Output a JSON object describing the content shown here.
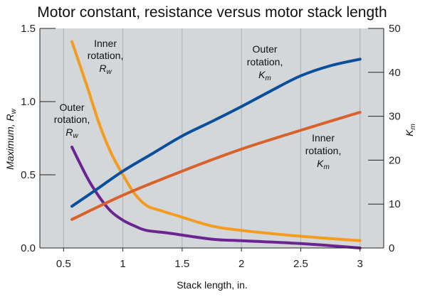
{
  "chart_data": {
    "type": "line",
    "title": "Motor constant, resistance versus motor stack length",
    "xlabel": "Stack length, in.",
    "ylabel": "Maximum, R",
    "ylabel_sub": "w",
    "y2label": "K",
    "y2label_sub": "m",
    "xlim": [
      0.3,
      3.2
    ],
    "ylim": [
      0,
      1.5
    ],
    "y2lim": [
      0,
      50
    ],
    "x_ticks": [
      "0.5",
      "1",
      "1.5",
      "2",
      "2.5",
      "3"
    ],
    "x_tick_values": [
      0.5,
      1,
      1.5,
      2,
      2.5,
      3
    ],
    "y_ticks": [
      "0.0",
      "0.5",
      "1.0",
      "1.5"
    ],
    "y_tick_values": [
      0,
      0.5,
      1.0,
      1.5
    ],
    "y2_ticks": [
      "0",
      "10",
      "20",
      "30",
      "40",
      "50"
    ],
    "y2_tick_values": [
      0,
      10,
      20,
      30,
      40,
      50
    ],
    "grid": "vertical",
    "series": [
      {
        "axis": "left",
        "color": "#f39c1f",
        "x": [
          0.57,
          0.7,
          0.8,
          0.9,
          1.0,
          1.1,
          1.2,
          1.3,
          1.5,
          1.75,
          2.0,
          2.5,
          3.0
        ],
        "values": [
          1.41,
          1.1,
          0.85,
          0.65,
          0.5,
          0.37,
          0.29,
          0.26,
          0.21,
          0.15,
          0.12,
          0.08,
          0.05
        ]
      },
      {
        "axis": "left",
        "color": "#6a2591",
        "x": [
          0.57,
          0.7,
          0.8,
          0.9,
          1.0,
          1.1,
          1.2,
          1.4,
          1.75,
          2.0,
          2.5,
          3.0
        ],
        "values": [
          0.69,
          0.48,
          0.35,
          0.25,
          0.19,
          0.15,
          0.12,
          0.1,
          0.06,
          0.05,
          0.03,
          0.0
        ]
      },
      {
        "axis": "right",
        "color": "#0b4f9c",
        "x": [
          0.57,
          0.75,
          1.0,
          1.25,
          1.5,
          1.75,
          2.0,
          2.25,
          2.5,
          2.75,
          3.0
        ],
        "values": [
          9.5,
          12.8,
          17.5,
          21.5,
          25.5,
          28.8,
          32.2,
          35.8,
          39.2,
          41.5,
          43.0
        ]
      },
      {
        "axis": "right",
        "color": "#d9622b",
        "x": [
          0.57,
          1.0,
          1.5,
          2.0,
          2.5,
          3.0
        ],
        "values": [
          6.5,
          12.0,
          17.5,
          22.5,
          26.8,
          30.9
        ]
      }
    ],
    "annotations": [
      {
        "lines": [
          "Inner",
          "rotation,",
          "R"
        ],
        "sub": "w"
      },
      {
        "lines": [
          "Outer",
          "rotation,",
          "R"
        ],
        "sub": "w"
      },
      {
        "lines": [
          "Outer",
          "rotation,",
          "K"
        ],
        "sub": "m"
      },
      {
        "lines": [
          "Inner",
          "rotation,",
          "K"
        ],
        "sub": "m"
      }
    ]
  },
  "style": {
    "plot_bg": "#d3d7da",
    "grid_color": "#a9aeb3",
    "axis_color": "#222222"
  }
}
